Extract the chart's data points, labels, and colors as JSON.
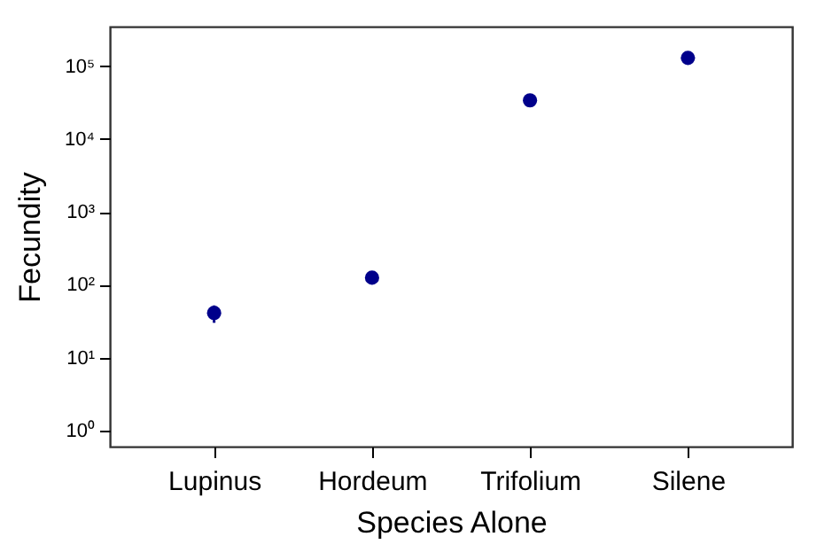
{
  "chart_data": {
    "type": "scatter",
    "xlabel": "Species Alone",
    "ylabel": "Fecundity",
    "categories": [
      "Lupinus",
      "Hordeum",
      "Trifolium",
      "Silene"
    ],
    "values": [
      41,
      125,
      34000,
      130000
    ],
    "errors": [
      [
        30,
        52
      ],
      null,
      null,
      null
    ],
    "color": "#00008b",
    "marker": "circle",
    "log": "y",
    "grid": false,
    "ylim": [
      0.6,
      350000
    ],
    "yticks": [
      {
        "value": 1,
        "label": "10⁰"
      },
      {
        "value": 10,
        "label": "10¹"
      },
      {
        "value": 100,
        "label": "10²"
      },
      {
        "value": 1000,
        "label": "10³"
      },
      {
        "value": 10000,
        "label": "10⁴"
      },
      {
        "value": 100000,
        "label": "10⁵"
      }
    ]
  }
}
